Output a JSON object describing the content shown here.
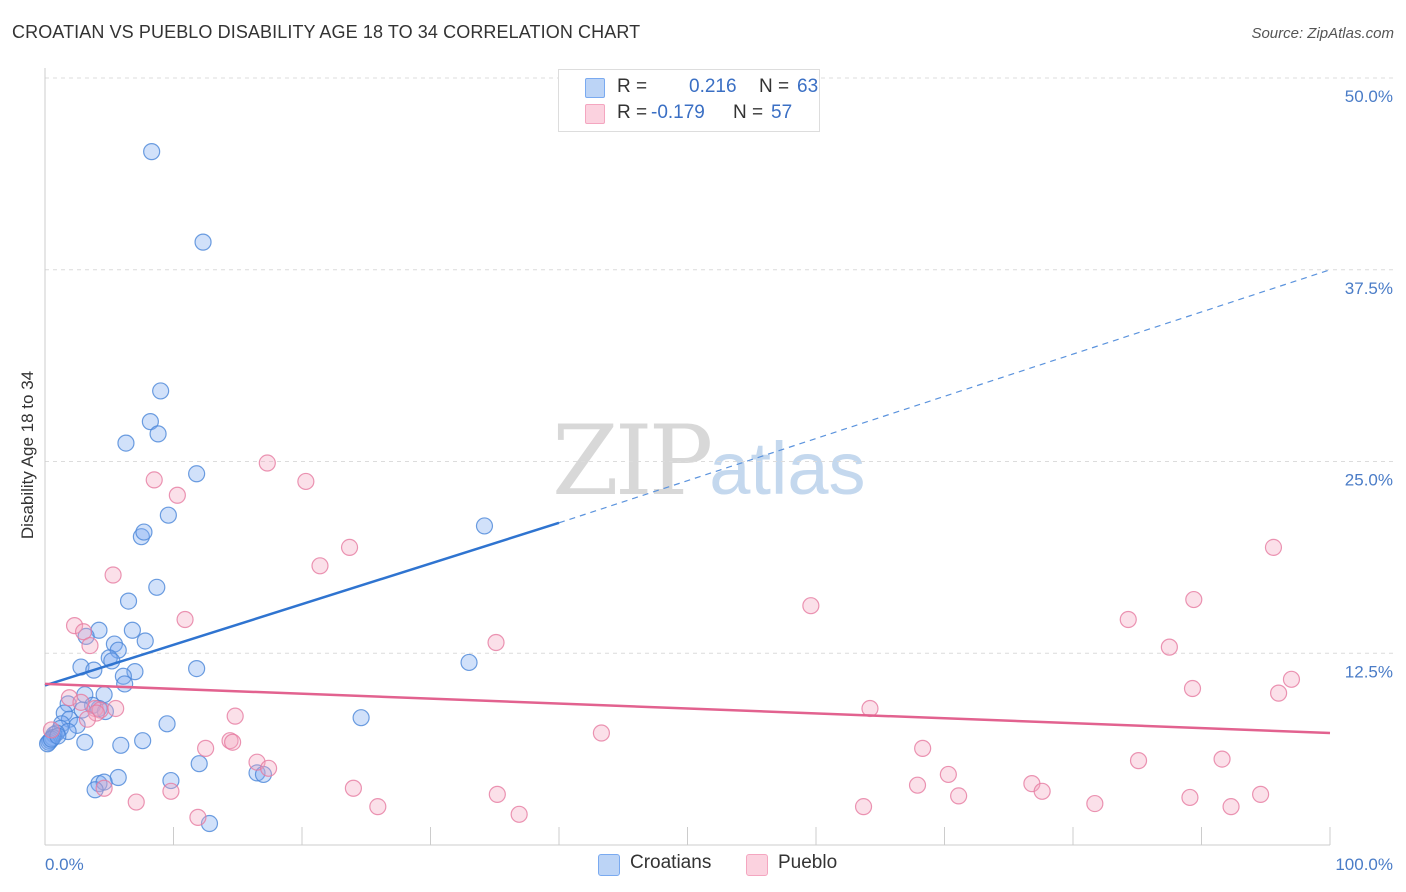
{
  "title": "CROATIAN VS PUEBLO DISABILITY AGE 18 TO 34 CORRELATION CHART",
  "source": "Source: ZipAtlas.com",
  "watermark": {
    "zip": "ZIP",
    "atlas": "atlas"
  },
  "legend": {
    "croatians": {
      "r_label": "R =",
      "r_value": "0.216",
      "n_label": "N =",
      "n_value": "63",
      "color": "#7aaaf0"
    },
    "pueblo": {
      "r_label": "R =",
      "r_value": "-0.179",
      "n_label": "N =",
      "n_value": "57",
      "color": "#f4a6c0"
    }
  },
  "bottom_legend": {
    "croatians": "Croatians",
    "pueblo": "Pueblo"
  },
  "chart_data": {
    "type": "scatter",
    "title": "CROATIAN VS PUEBLO DISABILITY AGE 18 TO 34 CORRELATION CHART",
    "xlabel": "",
    "ylabel": "Disability Age 18 to 34",
    "xlim": [
      0,
      100
    ],
    "ylim": [
      0,
      50
    ],
    "x_tick_labels": [
      "0.0%",
      "100.0%"
    ],
    "y_ticks": [
      12.5,
      25.0,
      37.5,
      50.0
    ],
    "y_tick_labels": [
      "12.5%",
      "25.0%",
      "37.5%",
      "50.0%"
    ],
    "legend_position": "top-center",
    "series": [
      {
        "name": "Croatians",
        "color": "#7aaaf0",
        "stroke": "#4a86d8",
        "r": 0.216,
        "n": 63,
        "trend": {
          "x0": 0,
          "y0": 10.4,
          "x1": 40,
          "y1": 21.0,
          "dash_to_x": 100,
          "dash_to_y": 37.5
        },
        "points": [
          [
            8.3,
            45.2
          ],
          [
            12.3,
            39.3
          ],
          [
            9.0,
            29.6
          ],
          [
            8.2,
            27.6
          ],
          [
            8.8,
            26.8
          ],
          [
            6.3,
            26.2
          ],
          [
            11.8,
            24.2
          ],
          [
            9.6,
            21.5
          ],
          [
            7.5,
            20.1
          ],
          [
            7.7,
            20.4
          ],
          [
            34.2,
            20.8
          ],
          [
            8.7,
            16.8
          ],
          [
            6.5,
            15.9
          ],
          [
            4.2,
            14.0
          ],
          [
            3.2,
            13.6
          ],
          [
            6.8,
            14.0
          ],
          [
            7.8,
            13.3
          ],
          [
            5.4,
            13.1
          ],
          [
            5.7,
            12.7
          ],
          [
            2.8,
            11.6
          ],
          [
            5.0,
            12.2
          ],
          [
            5.2,
            12.0
          ],
          [
            11.8,
            11.5
          ],
          [
            33.0,
            11.9
          ],
          [
            3.8,
            11.4
          ],
          [
            7.0,
            11.3
          ],
          [
            6.1,
            11.0
          ],
          [
            6.2,
            10.5
          ],
          [
            4.6,
            9.8
          ],
          [
            3.1,
            9.8
          ],
          [
            1.8,
            9.2
          ],
          [
            4.2,
            8.9
          ],
          [
            3.7,
            9.1
          ],
          [
            2.9,
            8.8
          ],
          [
            4.7,
            8.7
          ],
          [
            1.5,
            8.6
          ],
          [
            24.6,
            8.3
          ],
          [
            1.9,
            8.2
          ],
          [
            1.3,
            7.9
          ],
          [
            9.5,
            7.9
          ],
          [
            1.2,
            7.6
          ],
          [
            2.5,
            7.8
          ],
          [
            1.8,
            7.4
          ],
          [
            0.9,
            7.3
          ],
          [
            0.7,
            7.2
          ],
          [
            0.6,
            7.0
          ],
          [
            0.4,
            6.8
          ],
          [
            0.3,
            6.7
          ],
          [
            3.1,
            6.7
          ],
          [
            7.6,
            6.8
          ],
          [
            5.9,
            6.5
          ],
          [
            12.0,
            5.3
          ],
          [
            16.5,
            4.7
          ],
          [
            17.0,
            4.6
          ],
          [
            9.8,
            4.2
          ],
          [
            5.7,
            4.4
          ],
          [
            4.2,
            4.0
          ],
          [
            4.6,
            4.1
          ],
          [
            3.9,
            3.6
          ],
          [
            12.8,
            1.4
          ],
          [
            0.2,
            6.6
          ],
          [
            0.5,
            6.9
          ],
          [
            1.0,
            7.1
          ]
        ]
      },
      {
        "name": "Pueblo",
        "color": "#f4a6c0",
        "stroke": "#e67ba0",
        "r": -0.179,
        "n": 57,
        "trend": {
          "x0": 0,
          "y0": 10.5,
          "x1": 100,
          "y1": 7.3
        },
        "points": [
          [
            17.3,
            24.9
          ],
          [
            20.3,
            23.7
          ],
          [
            8.5,
            23.8
          ],
          [
            10.3,
            22.8
          ],
          [
            23.7,
            19.4
          ],
          [
            21.4,
            18.2
          ],
          [
            5.3,
            17.6
          ],
          [
            95.6,
            19.4
          ],
          [
            59.6,
            15.6
          ],
          [
            89.4,
            16.0
          ],
          [
            84.3,
            14.7
          ],
          [
            87.5,
            12.9
          ],
          [
            10.9,
            14.7
          ],
          [
            2.3,
            14.3
          ],
          [
            3.0,
            13.9
          ],
          [
            3.5,
            13.0
          ],
          [
            35.1,
            13.2
          ],
          [
            89.3,
            10.2
          ],
          [
            97.0,
            10.8
          ],
          [
            96.0,
            9.9
          ],
          [
            1.9,
            9.6
          ],
          [
            2.8,
            9.3
          ],
          [
            3.9,
            8.9
          ],
          [
            4.3,
            8.8
          ],
          [
            5.5,
            8.9
          ],
          [
            64.2,
            8.9
          ],
          [
            14.8,
            8.4
          ],
          [
            4.0,
            8.6
          ],
          [
            3.3,
            8.2
          ],
          [
            43.3,
            7.3
          ],
          [
            14.4,
            6.8
          ],
          [
            14.6,
            6.7
          ],
          [
            12.5,
            6.3
          ],
          [
            68.3,
            6.3
          ],
          [
            16.5,
            5.4
          ],
          [
            17.4,
            5.0
          ],
          [
            85.1,
            5.5
          ],
          [
            91.6,
            5.6
          ],
          [
            70.3,
            4.6
          ],
          [
            76.8,
            4.0
          ],
          [
            77.6,
            3.5
          ],
          [
            67.9,
            3.9
          ],
          [
            24.0,
            3.7
          ],
          [
            71.1,
            3.2
          ],
          [
            35.2,
            3.3
          ],
          [
            9.8,
            3.5
          ],
          [
            89.1,
            3.1
          ],
          [
            94.6,
            3.3
          ],
          [
            92.3,
            2.5
          ],
          [
            81.7,
            2.7
          ],
          [
            63.7,
            2.5
          ],
          [
            25.9,
            2.5
          ],
          [
            36.9,
            2.0
          ],
          [
            7.1,
            2.8
          ],
          [
            11.9,
            1.8
          ],
          [
            4.6,
            3.7
          ],
          [
            0.5,
            7.5
          ]
        ]
      }
    ]
  }
}
